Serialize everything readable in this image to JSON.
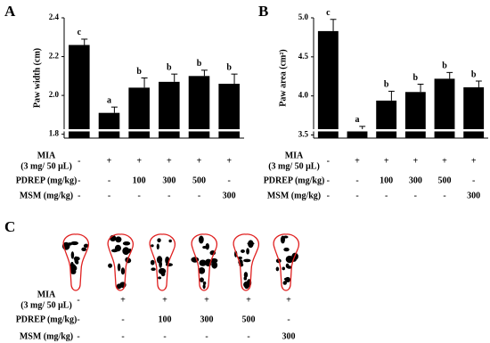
{
  "chart_data": [
    {
      "type": "bar",
      "panel": "A",
      "y_label": "Paw width (cm)",
      "color": "#000000",
      "values": [
        2.26,
        1.91,
        2.04,
        2.07,
        2.1,
        2.06
      ],
      "errors": [
        0.03,
        0.03,
        0.05,
        0.04,
        0.03,
        0.05
      ],
      "significance": [
        "c",
        "a",
        "b",
        "b",
        "b",
        "b"
      ],
      "ylim": [
        1.78,
        2.4
      ],
      "yticks": [
        1.8,
        {
          "value": 2.0,
          "label": "2.0"
        },
        2.2,
        2.4
      ]
    },
    {
      "type": "bar",
      "panel": "B",
      "y_label": "Paw area (cm²)",
      "color": "#000000",
      "values": [
        4.83,
        3.55,
        3.94,
        4.05,
        4.22,
        4.11
      ],
      "errors": [
        0.15,
        0.06,
        0.12,
        0.1,
        0.08,
        0.08
      ],
      "significance": [
        "c",
        "a",
        "b",
        "b",
        "b",
        "b"
      ],
      "ylim": [
        3.46,
        5.0
      ],
      "yticks": [
        3.5,
        {
          "value": 4.0,
          "label": "4.0"
        },
        4.5,
        {
          "value": 5.0,
          "label": "5.0"
        }
      ]
    }
  ],
  "panel_c": {
    "panel": "C"
  },
  "treatments": {
    "rows": [
      {
        "label": [
          "MIA",
          "(3 mg/ 50 μL)"
        ],
        "values": [
          "-",
          "+",
          "+",
          "+",
          "+",
          "+"
        ]
      },
      {
        "label": [
          "PDREP (mg/kg)"
        ],
        "values": [
          "-",
          "-",
          "100",
          "300",
          "500",
          "-"
        ]
      },
      {
        "label": [
          "MSM (mg/kg)"
        ],
        "values": [
          "-",
          "-",
          "-",
          "-",
          "-",
          "300"
        ]
      }
    ]
  }
}
